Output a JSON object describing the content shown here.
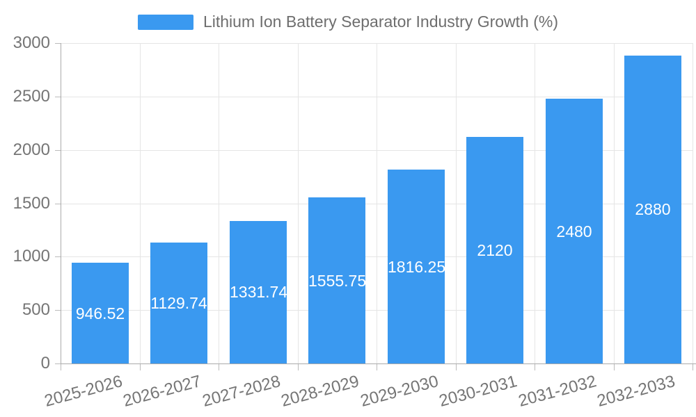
{
  "chart_data": {
    "type": "bar",
    "title": "Lithium Ion Battery Separator Industry Growth (%)",
    "legend_label": "Lithium Ion Battery Separator Industry Growth (%)",
    "legend_position": "top",
    "categories": [
      "2025-2026",
      "2026-2027",
      "2027-2028",
      "2028-2029",
      "2029-2030",
      "2030-2031",
      "2031-2032",
      "2032-2033"
    ],
    "series": [
      {
        "name": "Lithium Ion Battery Separator Industry Growth (%)",
        "values": [
          946.52,
          1129.74,
          1331.74,
          1555.75,
          1816.25,
          2120,
          2480,
          2880
        ],
        "value_labels": [
          "946.52",
          "1129.74",
          "1331.74",
          "1555.75",
          "1816.25",
          "2120",
          "2480",
          "2880"
        ]
      }
    ],
    "xlabel": "",
    "ylabel": "",
    "ylim": [
      0,
      3000
    ],
    "y_ticks": [
      0,
      500,
      1000,
      1500,
      2000,
      2500,
      3000
    ],
    "y_tick_labels": [
      "0",
      "500",
      "1000",
      "1500",
      "2000",
      "2500",
      "3000"
    ],
    "grid": true,
    "bar_color": "#3a99f0",
    "value_label_color": "#ffffff",
    "axis_text_color": "#757575"
  }
}
